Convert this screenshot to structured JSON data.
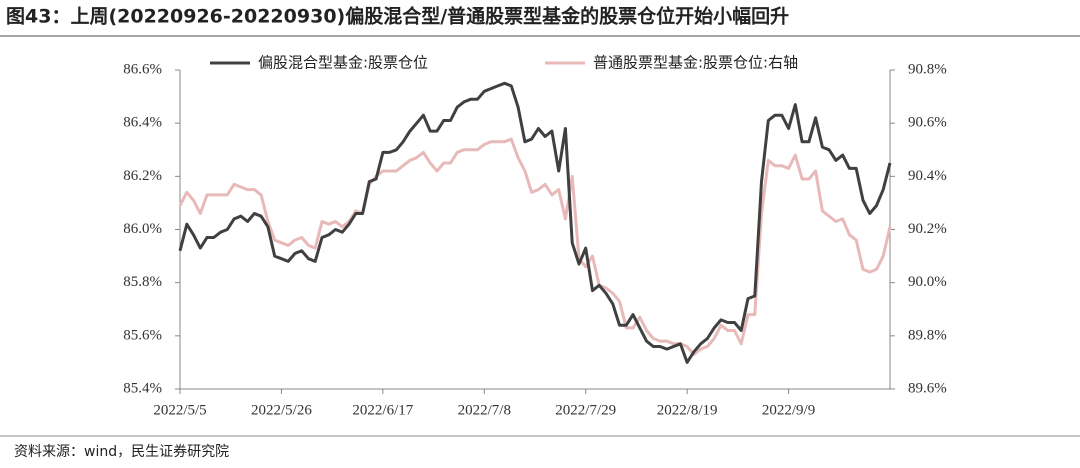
{
  "chart_data": {
    "type": "line",
    "title": "图43：上周(20220926-20220930)偏股混合型/普通股票型基金的股票仓位开始小幅回升",
    "source": "资料来源：wind，民生证券研究院",
    "categories": [
      "2022/5/5",
      null,
      null,
      null,
      null,
      null,
      null,
      null,
      null,
      null,
      null,
      null,
      null,
      null,
      null,
      "2022/5/26",
      null,
      null,
      null,
      null,
      null,
      null,
      null,
      null,
      null,
      null,
      null,
      null,
      null,
      null,
      "2022/6/17",
      null,
      null,
      null,
      null,
      null,
      null,
      null,
      null,
      null,
      null,
      null,
      null,
      null,
      null,
      "2022/7/8",
      null,
      null,
      null,
      null,
      null,
      null,
      null,
      null,
      null,
      null,
      null,
      null,
      null,
      null,
      "2022/7/29",
      null,
      null,
      null,
      null,
      null,
      null,
      null,
      null,
      null,
      null,
      null,
      null,
      null,
      null,
      "2022/8/19",
      null,
      null,
      null,
      null,
      null,
      null,
      null,
      null,
      null,
      null,
      null,
      null,
      null,
      null,
      "2022/9/9",
      null,
      null,
      null,
      null,
      null,
      null,
      null,
      null,
      null,
      null,
      null,
      null,
      null,
      null,
      null
    ],
    "series": [
      {
        "name": "偏股混合型基金:股票仓位",
        "color": "#404040",
        "axis": "y",
        "values": [
          85.92,
          86.02,
          85.98,
          85.93,
          85.97,
          85.97,
          85.99,
          86.0,
          86.04,
          86.05,
          86.03,
          86.06,
          86.05,
          86.01,
          85.9,
          85.89,
          85.88,
          85.91,
          85.92,
          85.89,
          85.88,
          85.97,
          85.98,
          86.0,
          85.99,
          86.02,
          86.06,
          86.06,
          86.18,
          86.19,
          86.29,
          86.29,
          86.3,
          86.33,
          86.37,
          86.4,
          86.43,
          86.37,
          86.37,
          86.41,
          86.41,
          86.46,
          86.48,
          86.49,
          86.49,
          86.52,
          86.53,
          86.54,
          86.55,
          86.54,
          86.46,
          86.33,
          86.34,
          86.38,
          86.35,
          86.37,
          86.22,
          86.38,
          85.95,
          85.87,
          85.93,
          85.77,
          85.79,
          85.76,
          85.72,
          85.64,
          85.64,
          85.68,
          85.63,
          85.58,
          85.56,
          85.56,
          85.55,
          85.56,
          85.57,
          85.5,
          85.54,
          85.57,
          85.59,
          85.63,
          85.66,
          85.65,
          85.65,
          85.62,
          85.74,
          85.75,
          86.18,
          86.41,
          86.43,
          86.43,
          86.38,
          86.47,
          86.33,
          86.33,
          86.42,
          86.31,
          86.3,
          86.26,
          86.28,
          86.23,
          86.23,
          86.11,
          86.06,
          86.09,
          86.15,
          86.25
        ]
      },
      {
        "name": "普通股票型基金:股票仓位:右轴",
        "color": "#e8b9b9",
        "axis": "y2",
        "values": [
          90.29,
          90.34,
          90.31,
          90.26,
          90.33,
          90.33,
          90.33,
          90.33,
          90.37,
          90.36,
          90.35,
          90.35,
          90.33,
          90.23,
          90.16,
          90.15,
          90.14,
          90.16,
          90.17,
          90.14,
          90.13,
          90.23,
          90.22,
          90.23,
          90.21,
          90.23,
          90.27,
          90.26,
          90.37,
          90.4,
          90.42,
          90.42,
          90.42,
          90.44,
          90.46,
          90.47,
          90.49,
          90.45,
          90.42,
          90.45,
          90.45,
          90.49,
          90.5,
          90.5,
          90.5,
          90.52,
          90.53,
          90.53,
          90.53,
          90.54,
          90.47,
          90.42,
          90.34,
          90.35,
          90.37,
          90.33,
          90.35,
          90.24,
          90.4,
          90.09,
          90.06,
          90.1,
          89.99,
          89.98,
          89.96,
          89.93,
          89.83,
          89.83,
          89.87,
          89.82,
          89.79,
          89.78,
          89.78,
          89.77,
          89.77,
          89.76,
          89.73,
          89.75,
          89.76,
          89.79,
          89.84,
          89.82,
          89.82,
          89.77,
          89.88,
          89.88,
          90.26,
          90.46,
          90.44,
          90.44,
          90.43,
          90.48,
          90.39,
          90.39,
          90.42,
          90.27,
          90.25,
          90.23,
          90.24,
          90.18,
          90.16,
          90.05,
          90.04,
          90.05,
          90.1,
          90.21
        ]
      }
    ],
    "ylim": [
      85.4,
      86.6
    ],
    "yticks": [
      {
        "value": 85.4,
        "label": "85.4%"
      },
      {
        "value": 85.6,
        "label": "85.6%"
      },
      {
        "value": 85.8,
        "label": "85.8%"
      },
      {
        "value": 86.0,
        "label": "86.0%"
      },
      {
        "value": 86.2,
        "label": "86.2%"
      },
      {
        "value": 86.4,
        "label": "86.4%"
      },
      {
        "value": 86.6,
        "label": "86.6%"
      }
    ],
    "y2lim": [
      89.6,
      90.8
    ],
    "y2ticks": [
      {
        "value": 89.6,
        "label": "89.6%"
      },
      {
        "value": 89.8,
        "label": "89.8%"
      },
      {
        "value": 90.0,
        "label": "90.0%"
      },
      {
        "value": 90.2,
        "label": "90.2%"
      },
      {
        "value": 90.4,
        "label": "90.4%"
      },
      {
        "value": 90.6,
        "label": "90.6%"
      },
      {
        "value": 90.8,
        "label": "90.8%"
      }
    ],
    "grid": false,
    "legend": "top"
  }
}
